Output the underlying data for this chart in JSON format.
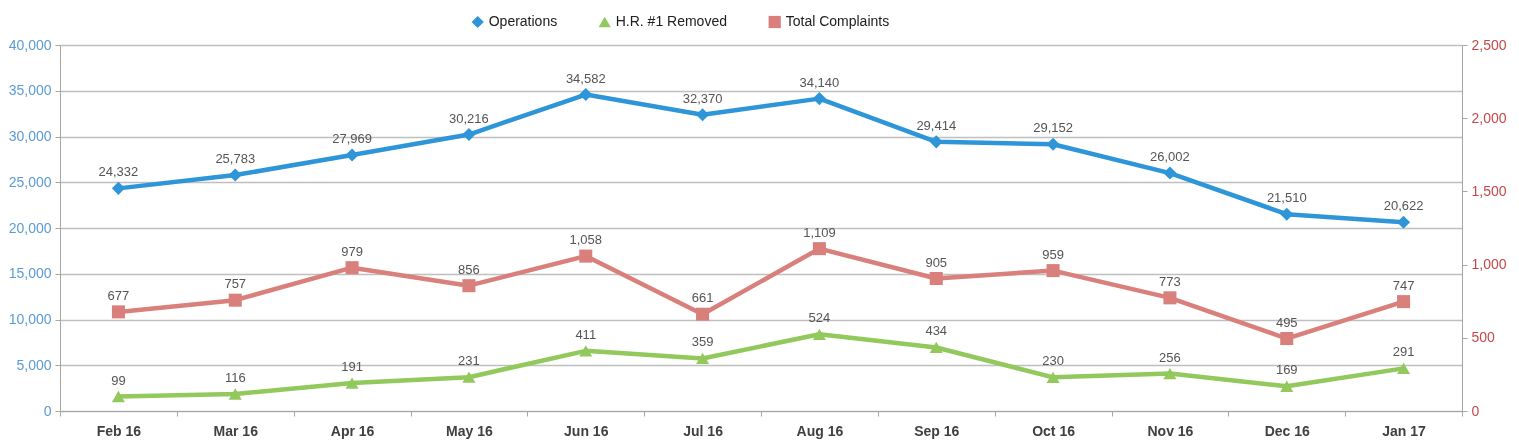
{
  "chart_data": {
    "type": "line",
    "categories": [
      "Feb 16",
      "Mar 16",
      "Apr 16",
      "May 16",
      "Jun 16",
      "Jul 16",
      "Aug 16",
      "Sep 16",
      "Oct 16",
      "Nov 16",
      "Dec 16",
      "Jan 17"
    ],
    "ylim": [
      0,
      40000
    ],
    "yticks": [
      {
        "value": 0,
        "label": "0"
      },
      {
        "value": 5000,
        "label": "5,000"
      },
      {
        "value": 10000,
        "label": "10,000"
      },
      {
        "value": 15000,
        "label": "15,000"
      },
      {
        "value": 20000,
        "label": "20,000"
      },
      {
        "value": 25000,
        "label": "25,000"
      },
      {
        "value": 30000,
        "label": "30,000"
      },
      {
        "value": 35000,
        "label": "35,000"
      },
      {
        "value": 40000,
        "label": "40,000"
      }
    ],
    "y2lim": [
      0,
      2500
    ],
    "y2ticks": [
      {
        "value": 0,
        "label": "0"
      },
      {
        "value": 500,
        "label": "500"
      },
      {
        "value": 1000,
        "label": "1,000"
      },
      {
        "value": 1500,
        "label": "1,500"
      },
      {
        "value": 2000,
        "label": "2,000"
      },
      {
        "value": 2500,
        "label": "2,500"
      }
    ],
    "grid": "y",
    "legend": "top",
    "line_style": "solid",
    "series": [
      {
        "name": "Operations",
        "color": "#2e96d8",
        "marker": "diamond",
        "values": [
          24332,
          25783,
          27969,
          30216,
          34582,
          32370,
          34140,
          29414,
          29152,
          26002,
          21510,
          20622
        ],
        "value_labels": [
          "24,332",
          "25,783",
          "27,969",
          "30,216",
          "34,582",
          "32,370",
          "34,140",
          "29,414",
          "29,152",
          "26,002",
          "21,510",
          "20,622"
        ]
      },
      {
        "name": "H.R. #1 Removed",
        "color": "#92c85c",
        "marker": "triangle",
        "axis": "y2",
        "values": [
          99,
          116,
          191,
          231,
          411,
          359,
          524,
          434,
          230,
          256,
          169,
          291
        ],
        "value_labels": [
          "99",
          "116",
          "191",
          "231",
          "411",
          "359",
          "524",
          "434",
          "230",
          "256",
          "169",
          "291"
        ]
      },
      {
        "name": "Total Complaints",
        "color": "#d9807c",
        "marker": "square",
        "axis": "y2",
        "values": [
          677,
          757,
          979,
          856,
          1058,
          661,
          1109,
          905,
          959,
          773,
          495,
          747
        ],
        "value_labels": [
          "677",
          "757",
          "979",
          "856",
          "1,058",
          "661",
          "1,109",
          "905",
          "959",
          "773",
          "495",
          "747"
        ]
      }
    ]
  }
}
